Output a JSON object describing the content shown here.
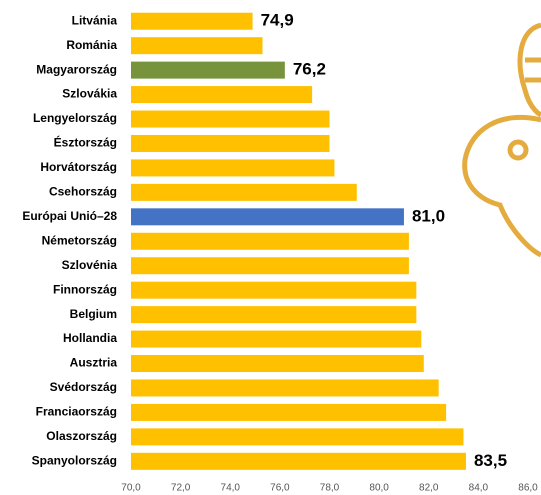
{
  "chart_data": {
    "type": "barh",
    "categories": [
      "Litvánia",
      "Románia",
      "Magyarország",
      "Szlovákia",
      "Lengyelország",
      "Észtország",
      "Horvátország",
      "Csehország",
      "Európai Unió–28",
      "Németország",
      "Szlovénia",
      "Finnország",
      "Belgium",
      "Hollandia",
      "Ausztria",
      "Svédország",
      "Franciaország",
      "Olaszország",
      "Spanyolország"
    ],
    "values": [
      74.9,
      75.3,
      76.2,
      77.3,
      78.0,
      78.0,
      78.2,
      79.1,
      81.0,
      81.2,
      81.2,
      81.5,
      81.5,
      81.7,
      81.8,
      82.4,
      82.7,
      83.4,
      83.5
    ],
    "value_labels": [
      "74,9",
      null,
      "76,2",
      null,
      null,
      null,
      null,
      null,
      "81,0",
      null,
      null,
      null,
      null,
      null,
      null,
      null,
      null,
      null,
      "83,5"
    ],
    "colors": [
      "#FFC000",
      "#FFC000",
      "#77933C",
      "#FFC000",
      "#FFC000",
      "#FFC000",
      "#FFC000",
      "#FFC000",
      "#4472C4",
      "#FFC000",
      "#FFC000",
      "#FFC000",
      "#FFC000",
      "#FFC000",
      "#FFC000",
      "#FFC000",
      "#FFC000",
      "#FFC000",
      "#FFC000"
    ],
    "xlim": [
      70,
      86
    ],
    "xticks": [
      {
        "value": 70,
        "label": "70,0"
      },
      {
        "value": 72,
        "label": "72,0"
      },
      {
        "value": 74,
        "label": "74,0"
      },
      {
        "value": 76,
        "label": "76,0"
      },
      {
        "value": 78,
        "label": "78,0"
      },
      {
        "value": 80,
        "label": "80,0"
      },
      {
        "value": 82,
        "label": "82,0"
      },
      {
        "value": 84,
        "label": "84,0"
      },
      {
        "value": 86,
        "label": "86,0"
      }
    ]
  }
}
